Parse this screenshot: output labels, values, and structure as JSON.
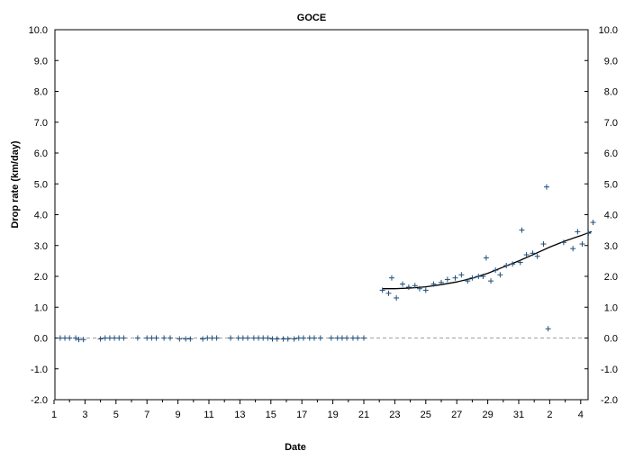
{
  "chart_data": {
    "type": "scatter",
    "title": "GOCE",
    "xlabel": "Date",
    "ylabel": "Drop rate  (km/day)",
    "ylim": [
      -2.0,
      10.0
    ],
    "y_ticks": [
      "-2.0",
      "-1.0",
      "0.0",
      "1.0",
      "2.0",
      "3.0",
      "4.0",
      "5.0",
      "6.0",
      "7.0",
      "8.0",
      "9.0",
      "10.0"
    ],
    "x_ticks": [
      "1",
      "3",
      "5",
      "7",
      "9",
      "11",
      "13",
      "15",
      "17",
      "19",
      "21",
      "23",
      "25",
      "27",
      "29",
      "31",
      "2",
      "4"
    ],
    "x_axis_unit": "day of month (two consecutive months)",
    "xlim_days": [
      1,
      35
    ],
    "grid": false,
    "zero_reference_line": "dashed gray",
    "series": [
      {
        "marker": "+",
        "color": "#1f4e79",
        "points": [
          [
            1.4,
            0.0
          ],
          [
            1.7,
            0.0
          ],
          [
            2.0,
            0.0
          ],
          [
            2.4,
            0.0
          ],
          [
            2.6,
            -0.05
          ],
          [
            2.9,
            -0.05
          ],
          [
            4.0,
            -0.03
          ],
          [
            4.3,
            0.0
          ],
          [
            4.6,
            0.0
          ],
          [
            4.9,
            0.0
          ],
          [
            5.2,
            0.0
          ],
          [
            5.5,
            0.0
          ],
          [
            6.4,
            0.0
          ],
          [
            7.0,
            0.0
          ],
          [
            7.3,
            0.0
          ],
          [
            7.6,
            0.0
          ],
          [
            8.1,
            0.0
          ],
          [
            8.5,
            0.0
          ],
          [
            9.1,
            -0.03
          ],
          [
            9.5,
            -0.03
          ],
          [
            9.8,
            -0.03
          ],
          [
            10.6,
            -0.03
          ],
          [
            10.9,
            0.0
          ],
          [
            11.2,
            0.0
          ],
          [
            11.5,
            0.0
          ],
          [
            12.4,
            0.0
          ],
          [
            12.9,
            0.0
          ],
          [
            13.2,
            0.0
          ],
          [
            13.5,
            0.0
          ],
          [
            13.9,
            0.0
          ],
          [
            14.2,
            0.0
          ],
          [
            14.5,
            0.0
          ],
          [
            14.8,
            0.0
          ],
          [
            15.1,
            -0.03
          ],
          [
            15.4,
            -0.03
          ],
          [
            15.8,
            -0.03
          ],
          [
            16.1,
            -0.03
          ],
          [
            16.5,
            -0.03
          ],
          [
            16.8,
            0.0
          ],
          [
            17.1,
            0.0
          ],
          [
            17.5,
            0.0
          ],
          [
            17.8,
            0.0
          ],
          [
            18.2,
            0.0
          ],
          [
            18.9,
            0.0
          ],
          [
            19.3,
            0.0
          ],
          [
            19.6,
            0.0
          ],
          [
            19.9,
            0.0
          ],
          [
            20.3,
            0.0
          ],
          [
            20.6,
            0.0
          ],
          [
            21.0,
            0.0
          ],
          [
            22.2,
            1.55
          ],
          [
            22.6,
            1.45
          ],
          [
            22.8,
            1.95
          ],
          [
            23.1,
            1.3
          ],
          [
            23.5,
            1.75
          ],
          [
            23.9,
            1.65
          ],
          [
            24.3,
            1.7
          ],
          [
            24.6,
            1.6
          ],
          [
            25.0,
            1.55
          ],
          [
            25.5,
            1.75
          ],
          [
            26.0,
            1.8
          ],
          [
            26.4,
            1.9
          ],
          [
            26.9,
            1.95
          ],
          [
            27.3,
            2.05
          ],
          [
            27.7,
            1.85
          ],
          [
            28.0,
            1.95
          ],
          [
            28.4,
            2.0
          ],
          [
            28.7,
            2.0
          ],
          [
            28.9,
            2.6
          ],
          [
            29.2,
            1.85
          ],
          [
            29.5,
            2.2
          ],
          [
            29.8,
            2.05
          ],
          [
            30.2,
            2.35
          ],
          [
            30.6,
            2.4
          ],
          [
            31.1,
            2.45
          ],
          [
            31.2,
            3.5
          ],
          [
            31.5,
            2.7
          ],
          [
            31.9,
            2.75
          ],
          [
            32.2,
            2.65
          ],
          [
            32.6,
            3.05
          ],
          [
            32.8,
            4.9
          ],
          [
            32.9,
            0.3
          ],
          [
            33.9,
            3.1
          ],
          [
            34.5,
            2.9
          ],
          [
            34.8,
            3.45
          ],
          [
            35.1,
            3.05
          ],
          [
            35.5,
            3.4
          ],
          [
            35.8,
            3.75
          ]
        ]
      }
    ],
    "fit_curve": {
      "style": "solid black",
      "points": [
        [
          22.2,
          1.6
        ],
        [
          23,
          1.6
        ],
        [
          24,
          1.62
        ],
        [
          25,
          1.66
        ],
        [
          26,
          1.73
        ],
        [
          27,
          1.82
        ],
        [
          28,
          1.94
        ],
        [
          29,
          2.1
        ],
        [
          30,
          2.3
        ],
        [
          31,
          2.5
        ],
        [
          32,
          2.72
        ],
        [
          33,
          2.95
        ],
        [
          34,
          3.15
        ],
        [
          35,
          3.32
        ],
        [
          35.7,
          3.45
        ]
      ]
    }
  }
}
